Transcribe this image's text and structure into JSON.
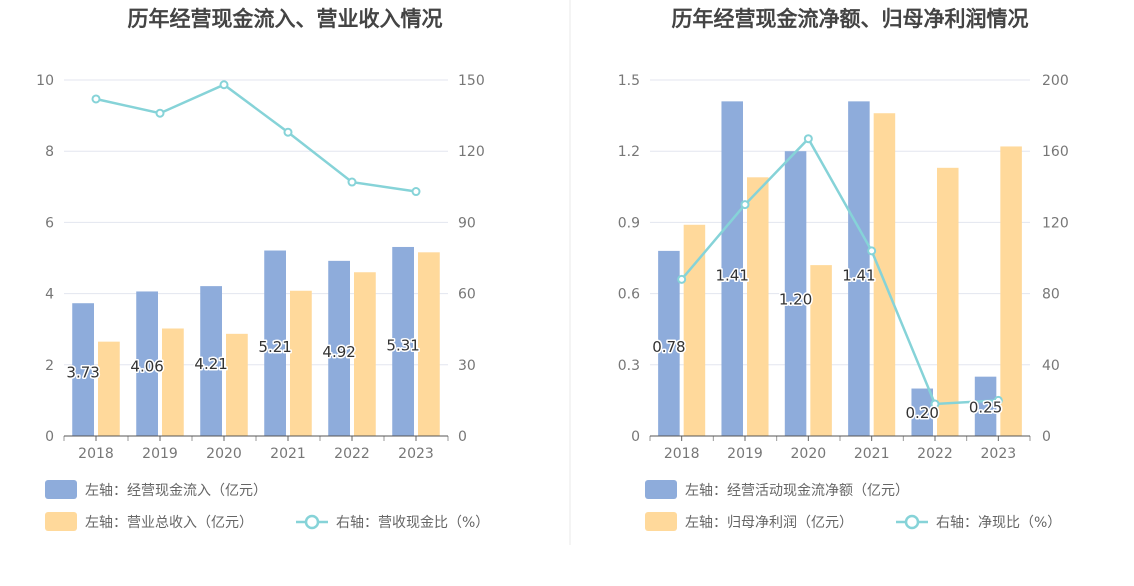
{
  "colors": {
    "bar_left": "#8eacdb",
    "bar_right": "#ffd99b",
    "line": "#86d3d8",
    "grid": "#e3e6ef",
    "divider": "#e8e8e8"
  },
  "chart_data": [
    {
      "type": "bar",
      "title": "历年经营现金流入、营业收入情况",
      "categories": [
        "2018",
        "2019",
        "2020",
        "2021",
        "2022",
        "2023"
      ],
      "left_axis": {
        "ylim": [
          0,
          10
        ],
        "ticks": [
          "0",
          "2",
          "4",
          "6",
          "8",
          "10"
        ]
      },
      "right_axis": {
        "ylim": [
          0,
          150
        ],
        "ticks": [
          "0",
          "30",
          "60",
          "90",
          "120",
          "150"
        ]
      },
      "series": [
        {
          "name": "左轴：经营现金流入（亿元）",
          "kind": "bar",
          "axis": "left",
          "values": [
            3.73,
            4.06,
            4.21,
            5.21,
            4.92,
            5.31
          ],
          "labels": [
            "3.73",
            "4.06",
            "4.21",
            "5.21",
            "4.92",
            "5.31"
          ],
          "legend_icon": "bar-swatch-icon"
        },
        {
          "name": "左轴：营业总收入（亿元）",
          "kind": "bar",
          "axis": "left",
          "values": [
            2.65,
            3.02,
            2.87,
            4.08,
            4.6,
            5.16
          ],
          "legend_icon": "bar-swatch-icon"
        },
        {
          "name": "右轴：营收现金比（%）",
          "kind": "line",
          "axis": "right",
          "values": [
            142,
            136,
            148,
            128,
            107,
            103
          ],
          "legend_icon": "line-circle-icon"
        }
      ],
      "grid": true,
      "legend_position": "bottom-left"
    },
    {
      "type": "bar",
      "title": "历年经营现金流净额、归母净利润情况",
      "categories": [
        "2018",
        "2019",
        "2020",
        "2021",
        "2022",
        "2023"
      ],
      "left_axis": {
        "ylim": [
          0,
          1.5
        ],
        "ticks": [
          "0",
          "0.3",
          "0.6",
          "0.9",
          "1.2",
          "1.5"
        ]
      },
      "right_axis": {
        "ylim": [
          0,
          200
        ],
        "ticks": [
          "0",
          "40",
          "80",
          "120",
          "160",
          "200"
        ]
      },
      "series": [
        {
          "name": "左轴：经营活动现金流净额（亿元）",
          "kind": "bar",
          "axis": "left",
          "values": [
            0.78,
            1.41,
            1.2,
            1.41,
            0.2,
            0.25
          ],
          "labels": [
            "0.78",
            "1.41",
            "1.20",
            "1.41",
            "0.20",
            "0.25"
          ],
          "legend_icon": "bar-swatch-icon"
        },
        {
          "name": "左轴：归母净利润（亿元）",
          "kind": "bar",
          "axis": "left",
          "values": [
            0.89,
            1.09,
            0.72,
            1.36,
            1.13,
            1.22
          ],
          "legend_icon": "bar-swatch-icon"
        },
        {
          "name": "右轴：净现比（%）",
          "kind": "line",
          "axis": "right",
          "values": [
            88,
            130,
            167,
            104,
            18,
            20
          ],
          "legend_icon": "line-circle-icon"
        }
      ],
      "grid": true,
      "legend_position": "bottom-left"
    }
  ]
}
